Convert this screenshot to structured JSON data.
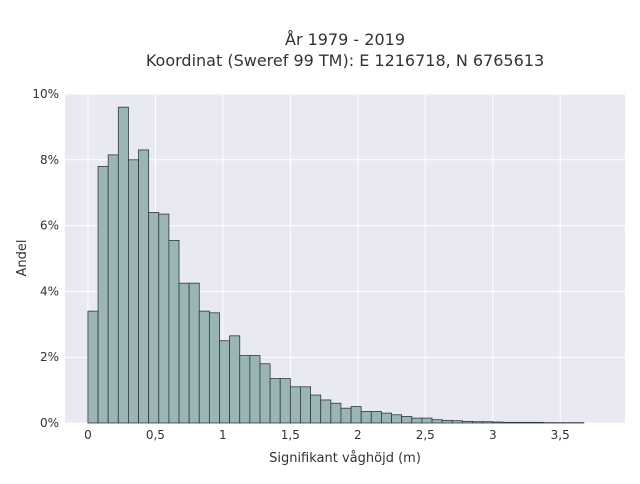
{
  "chart_data": {
    "type": "bar",
    "title": "År 1979 - 2019",
    "subtitle": "Koordinat (Sweref 99 TM): E 1216718, N 6765613",
    "xlabel": "Signifikant våghöjd (m)",
    "ylabel": "Andel",
    "bin_width": 0.075,
    "bin_start": 0,
    "values": [
      3.4,
      7.8,
      8.15,
      9.6,
      8.0,
      8.3,
      6.4,
      6.35,
      5.55,
      4.25,
      4.25,
      3.4,
      3.35,
      2.5,
      2.65,
      2.05,
      2.05,
      1.8,
      1.35,
      1.35,
      1.1,
      1.1,
      0.85,
      0.7,
      0.6,
      0.45,
      0.5,
      0.35,
      0.35,
      0.3,
      0.25,
      0.2,
      0.15,
      0.15,
      0.1,
      0.08,
      0.07,
      0.05,
      0.04,
      0.04,
      0.03,
      0.02,
      0.02,
      0.02,
      0.02,
      0.01,
      0.01,
      0.01,
      0.01
    ],
    "xlim": [
      -0.17,
      3.98
    ],
    "ylim": [
      0,
      10
    ],
    "xticks": [
      {
        "value": 0,
        "label": "0"
      },
      {
        "value": 0.5,
        "label": "0,5"
      },
      {
        "value": 1,
        "label": "1"
      },
      {
        "value": 1.5,
        "label": "1,5"
      },
      {
        "value": 2,
        "label": "2"
      },
      {
        "value": 2.5,
        "label": "2,5"
      },
      {
        "value": 3,
        "label": "3"
      },
      {
        "value": 3.5,
        "label": "3,5"
      }
    ],
    "yticks": [
      {
        "value": 0,
        "label": "0%"
      },
      {
        "value": 2,
        "label": "2%"
      },
      {
        "value": 4,
        "label": "4%"
      },
      {
        "value": 6,
        "label": "6%"
      },
      {
        "value": 8,
        "label": "8%"
      },
      {
        "value": 10,
        "label": "10%"
      }
    ],
    "grid": true,
    "colors": {
      "plot_background": "#e9e9f1",
      "grid": "#ffffff",
      "bar_fill": "#9bb5b5",
      "bar_stroke": "#2f3a3a"
    }
  }
}
